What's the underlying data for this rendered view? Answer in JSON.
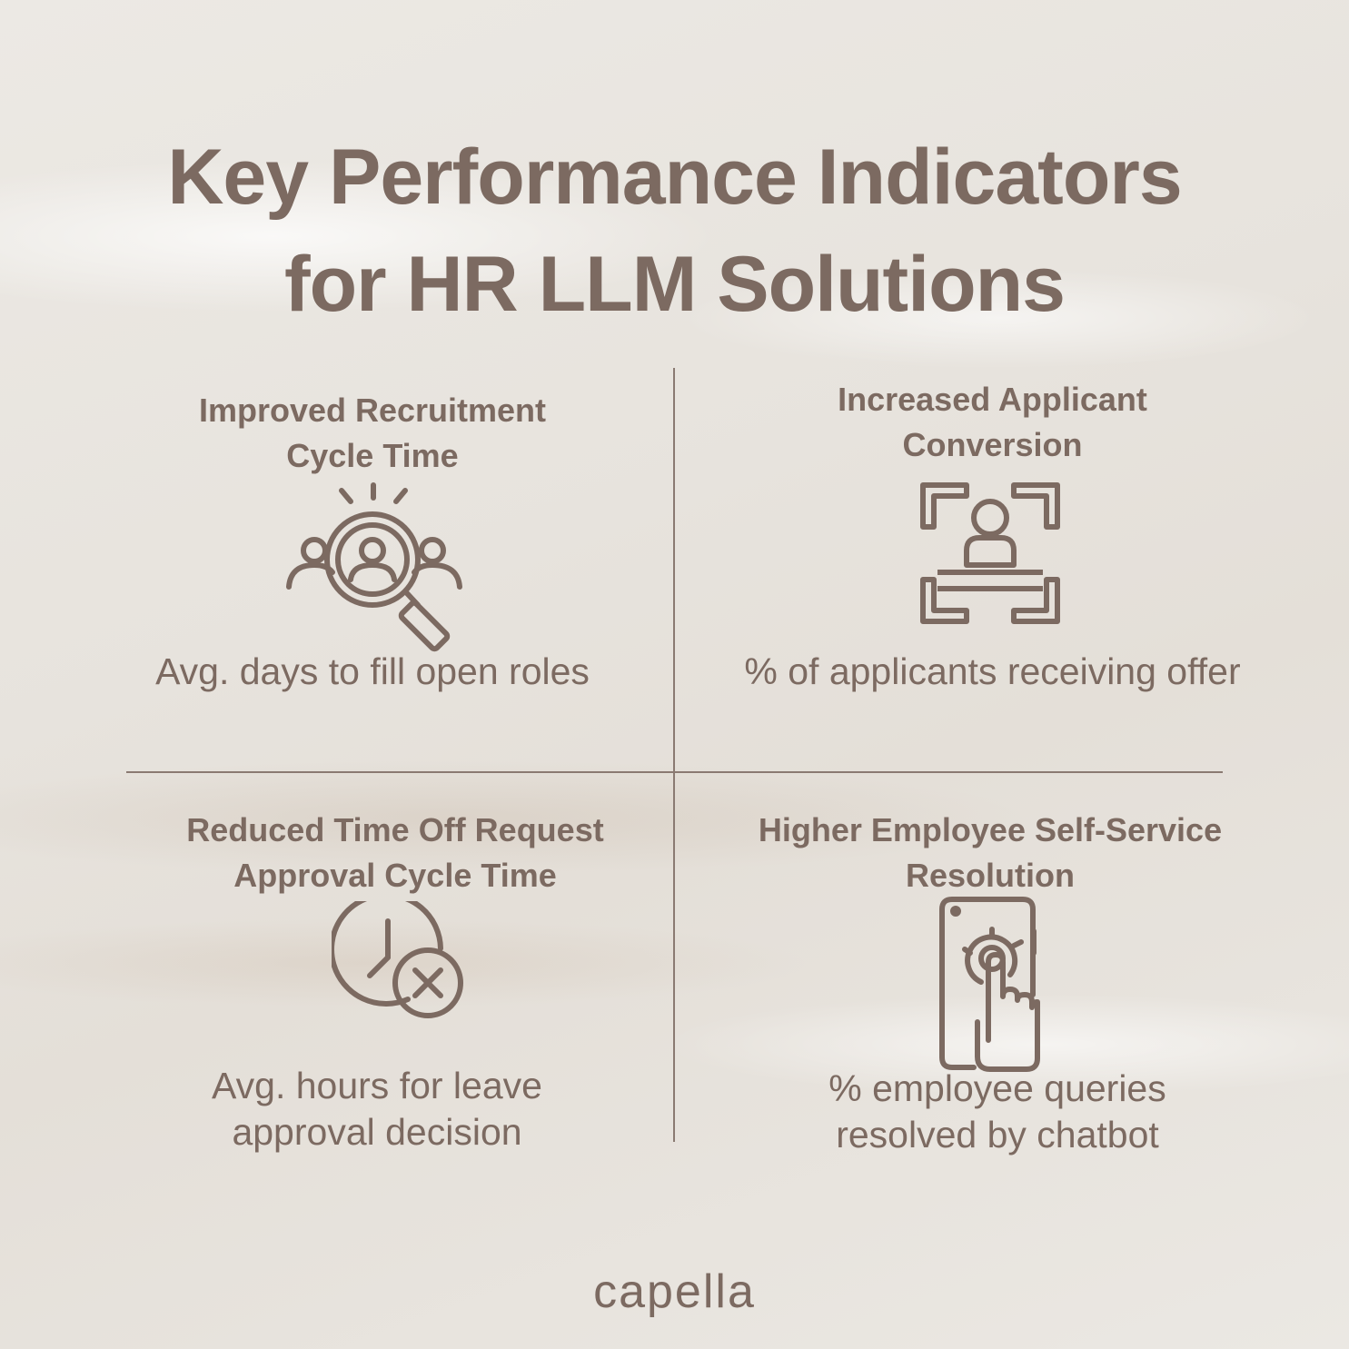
{
  "title": {
    "line1": "Key Performance Indicators",
    "line2": "for HR LLM Solutions"
  },
  "kpis": [
    {
      "title_line1": "Improved Recruitment",
      "title_line2": "Cycle Time",
      "icon": "recruitment-search-icon",
      "desc_line1": "Avg. days to fill open roles",
      "desc_line2": ""
    },
    {
      "title_line1": "Increased Applicant",
      "title_line2": "Conversion",
      "icon": "applicant-focus-icon",
      "desc_line1": "% of applicants receiving offer",
      "desc_line2": ""
    },
    {
      "title_line1": "Reduced Time Off Request",
      "title_line2": "Approval Cycle Time",
      "icon": "clock-cancel-icon",
      "desc_line1": "Avg. hours for leave",
      "desc_line2": "approval decision"
    },
    {
      "title_line1": "Higher Employee Self-Service",
      "title_line2": "Resolution",
      "icon": "phone-touch-icon",
      "desc_line1": "% employee queries",
      "desc_line2": "resolved by chatbot"
    }
  ],
  "brand": {
    "logo_text": "capella"
  },
  "colors": {
    "text": "#7c6a61",
    "divider": "#8a7a72",
    "background": "#ebe8e3"
  }
}
